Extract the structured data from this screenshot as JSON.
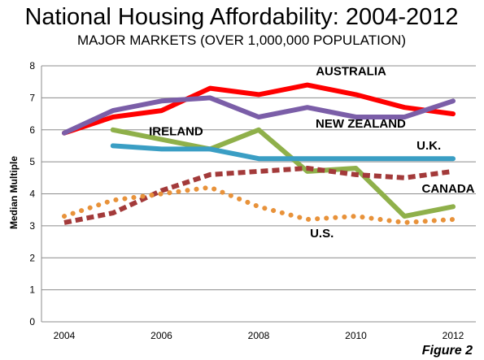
{
  "chart_data": {
    "type": "line",
    "title": "National Housing Affordability: 2004-2012",
    "subtitle": "MAJOR MARKETS (OVER 1,000,000 POPULATION)",
    "xlabel": "",
    "ylabel": "Median Multiple",
    "x": [
      2004,
      2005,
      2006,
      2007,
      2008,
      2009,
      2010,
      2011,
      2012
    ],
    "x_ticks": [
      "2004",
      "2006",
      "2008",
      "2010",
      "2012"
    ],
    "y_ticks": [
      "0",
      "1",
      "2",
      "3",
      "4",
      "5",
      "6",
      "7",
      "8"
    ],
    "ylim": [
      0,
      8
    ],
    "grid": true,
    "legend": "none",
    "figure_label": "Figure 2",
    "series": [
      {
        "name": "AUSTRALIA",
        "color": "#ff0000",
        "style": "solid",
        "values": [
          5.9,
          6.4,
          6.6,
          7.3,
          7.1,
          7.4,
          7.1,
          6.7,
          6.5
        ]
      },
      {
        "name": "NEW ZEALAND",
        "color": "#7b5ea8",
        "style": "solid",
        "values": [
          5.9,
          6.6,
          6.9,
          7.0,
          6.4,
          6.7,
          6.4,
          6.4,
          6.9
        ]
      },
      {
        "name": "IRELAND",
        "color": "#8fb04a",
        "style": "solid",
        "values": [
          null,
          6.0,
          5.7,
          5.4,
          6.0,
          4.7,
          4.8,
          3.3,
          3.6
        ]
      },
      {
        "name": "U.K.",
        "color": "#3a9ec4",
        "style": "solid",
        "values": [
          null,
          5.5,
          5.4,
          5.4,
          5.1,
          5.1,
          5.1,
          5.1,
          5.1
        ]
      },
      {
        "name": "CANADA",
        "color": "#a33a3a",
        "style": "dashed",
        "values": [
          3.1,
          3.4,
          4.1,
          4.6,
          4.7,
          4.8,
          4.6,
          4.5,
          4.7
        ]
      },
      {
        "name": "U.S.",
        "color": "#e8923a",
        "style": "dotted",
        "values": [
          3.3,
          3.8,
          4.0,
          4.2,
          3.6,
          3.2,
          3.3,
          3.1,
          3.2
        ]
      }
    ]
  }
}
